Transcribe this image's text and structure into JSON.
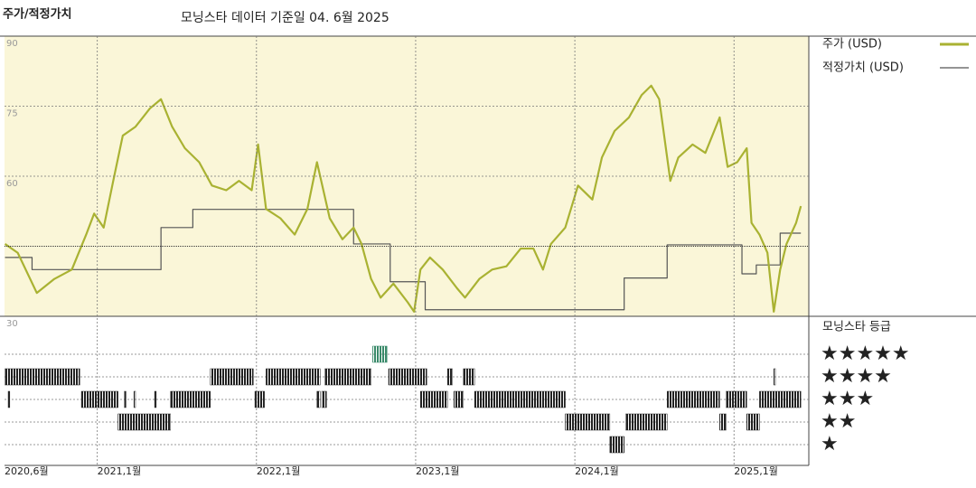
{
  "chart_data": {
    "type": "line",
    "title": "주가/적정가치",
    "subtitle": "모닝스타 데이터 기준일 04. 6월 2025",
    "xlim": [
      2020.417,
      2025.47
    ],
    "xticks": [
      {
        "value": 2020.417,
        "label": "2020,6월"
      },
      {
        "value": 2021.0,
        "label": "2021,1월"
      },
      {
        "value": 2022.0,
        "label": "2022,1월"
      },
      {
        "value": 2023.0,
        "label": "2023,1월"
      },
      {
        "value": 2024.0,
        "label": "2024,1월"
      },
      {
        "value": 2025.0,
        "label": "2025,1월"
      }
    ],
    "ylim": [
      30,
      90
    ],
    "yticks": [
      30,
      60,
      75,
      90
    ],
    "reference_line": 45,
    "grid": true,
    "series": [
      {
        "name": "주가 (USD)",
        "color": "#a9b232",
        "x": [
          2020.42,
          2020.5,
          2020.62,
          2020.73,
          2020.84,
          2020.93,
          2020.98,
          2021.04,
          2021.1,
          2021.16,
          2021.24,
          2021.33,
          2021.4,
          2021.47,
          2021.55,
          2021.64,
          2021.72,
          2021.81,
          2021.89,
          2021.97,
          2022.01,
          2022.06,
          2022.15,
          2022.24,
          2022.32,
          2022.38,
          2022.46,
          2022.54,
          2022.61,
          2022.66,
          2022.72,
          2022.78,
          2022.86,
          2022.95,
          2022.99,
          2023.03,
          2023.09,
          2023.17,
          2023.26,
          2023.31,
          2023.4,
          2023.48,
          2023.57,
          2023.66,
          2023.74,
          2023.8,
          2023.85,
          2023.94,
          2024.02,
          2024.11,
          2024.17,
          2024.25,
          2024.34,
          2024.42,
          2024.48,
          2024.53,
          2024.6,
          2024.65,
          2024.74,
          2024.82,
          2024.91,
          2024.96,
          2025.02,
          2025.08,
          2025.11,
          2025.16,
          2025.21,
          2025.25,
          2025.29,
          2025.33,
          2025.39,
          2025.42
        ],
        "values": [
          45.5,
          43.6,
          35,
          38,
          40,
          47.5,
          52,
          49,
          59,
          68.7,
          70.6,
          74.5,
          76.5,
          70.6,
          66,
          63,
          58,
          57,
          59,
          57,
          66.8,
          53,
          51,
          47.5,
          53,
          63,
          51,
          46.5,
          49,
          45.5,
          38,
          34,
          37,
          33,
          31,
          40,
          42.6,
          40,
          36,
          34,
          38,
          40,
          40.7,
          44.5,
          44.5,
          40,
          45.5,
          49,
          58,
          55,
          64,
          69.7,
          72.6,
          77.4,
          79.4,
          76.5,
          59,
          64,
          66.8,
          65,
          72.6,
          62,
          63,
          66,
          50,
          47.5,
          43.6,
          31,
          40,
          45.5,
          50,
          53.6
        ]
      },
      {
        "name": "적정가치 (USD)",
        "color": "#555555",
        "step": "after",
        "x": [
          2020.42,
          2020.59,
          2021.4,
          2021.6,
          2022.61,
          2022.84,
          2023.06,
          2024.31,
          2024.58,
          2025.05,
          2025.14,
          2025.29,
          2025.42
        ],
        "values": [
          42.6,
          40,
          49,
          52.9,
          45.5,
          37.4,
          31.4,
          38.2,
          45.3,
          39.1,
          41,
          47.8,
          47.8
        ]
      }
    ],
    "ratings": {
      "title": "모닝스타 등급",
      "rows": [
        {
          "name": "★★★★★",
          "color": "#3a8a6a",
          "segments": [
            [
              2022.73,
              2022.82
            ]
          ]
        },
        {
          "name": "★★★★",
          "color": "#222222",
          "segments": [
            [
              2020.42,
              2020.89
            ],
            [
              2021.71,
              2021.98
            ],
            [
              2022.06,
              2022.4
            ],
            [
              2022.43,
              2022.72
            ],
            [
              2022.83,
              2023.07
            ],
            [
              2023.2,
              2023.23
            ],
            [
              2023.3,
              2023.37
            ],
            [
              2025.25,
              2025.26
            ]
          ]
        },
        {
          "name": "★★★",
          "color": "#222222",
          "segments": [
            [
              2020.44,
              2020.45
            ],
            [
              2020.9,
              2021.13
            ],
            [
              2021.17,
              2021.18
            ],
            [
              2021.23,
              2021.24
            ],
            [
              2021.36,
              2021.37
            ],
            [
              2021.46,
              2021.71
            ],
            [
              2021.99,
              2022.05
            ],
            [
              2022.38,
              2022.4
            ],
            [
              2022.41,
              2022.44
            ],
            [
              2023.03,
              2023.2
            ],
            [
              2023.24,
              2023.3
            ],
            [
              2023.37,
              2023.94
            ],
            [
              2024.58,
              2024.91
            ],
            [
              2024.95,
              2025.08
            ],
            [
              2025.16,
              2025.42
            ]
          ]
        },
        {
          "name": "★★",
          "color": "#222222",
          "segments": [
            [
              2021.13,
              2021.46
            ],
            [
              2023.94,
              2024.22
            ],
            [
              2024.32,
              2024.58
            ],
            [
              2024.91,
              2024.95
            ],
            [
              2025.08,
              2025.16
            ]
          ]
        },
        {
          "name": "★",
          "color": "#222222",
          "segments": [
            [
              2024.22,
              2024.31
            ]
          ]
        }
      ]
    }
  }
}
